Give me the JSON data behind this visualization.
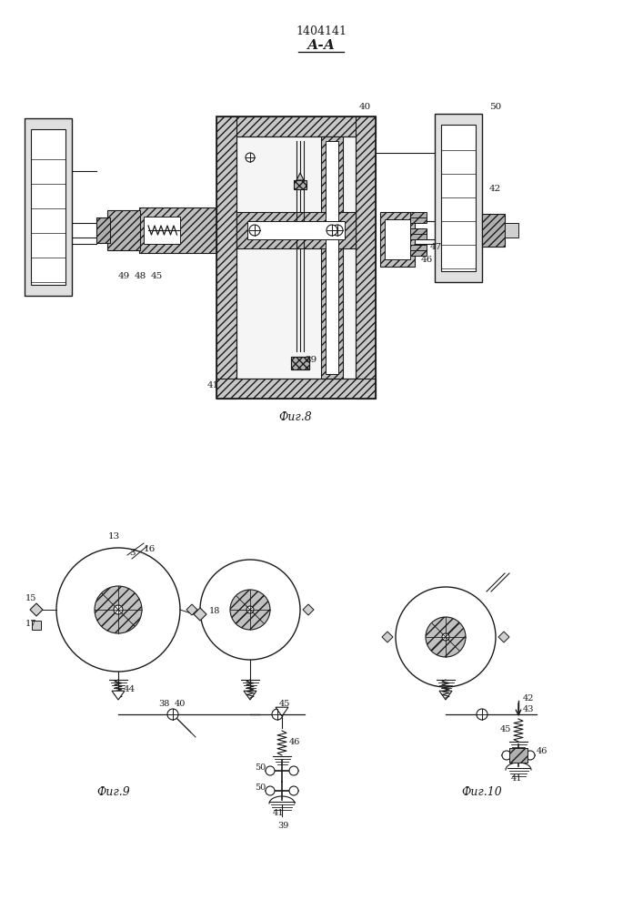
{
  "title_number": "1404141",
  "title_section": "А-А",
  "fig8_label": "Фиг.8",
  "fig9_label": "Фиг.9",
  "fig10_label": "Фиг.10",
  "bg_color": "#ffffff",
  "line_color": "#1a1a1a"
}
